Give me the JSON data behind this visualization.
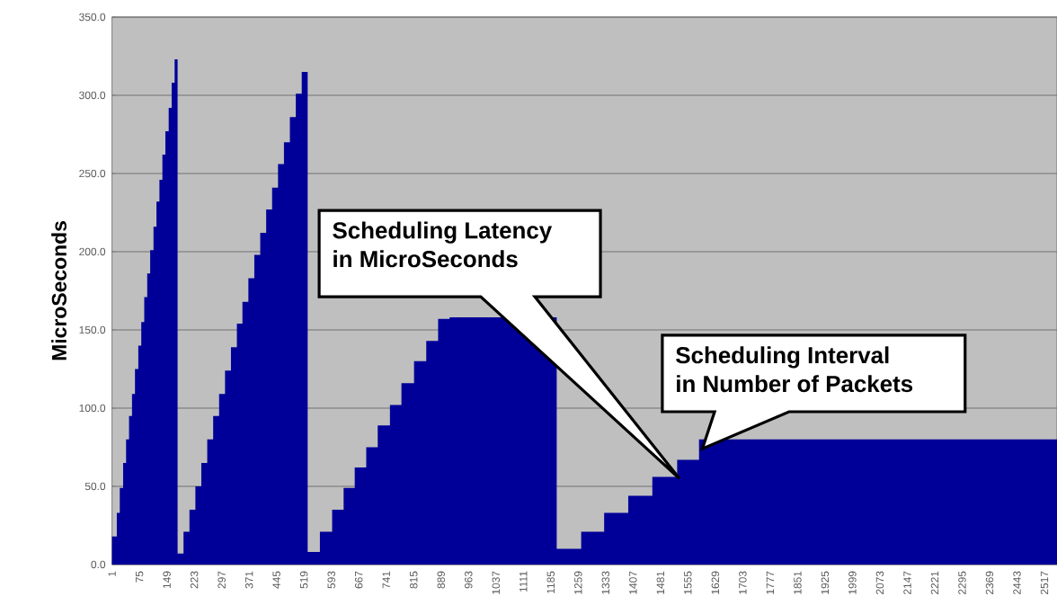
{
  "chart_data": {
    "type": "area",
    "ylabel": "MicroSeconds",
    "color": "#000099",
    "x": [
      1,
      14,
      14,
      22,
      22,
      31,
      31,
      39,
      39,
      47,
      47,
      55,
      55,
      63,
      63,
      72,
      72,
      80,
      80,
      88,
      88,
      96,
      96,
      104,
      104,
      113,
      113,
      121,
      121,
      129,
      129,
      137,
      137,
      145,
      145,
      154,
      154,
      162,
      162,
      170,
      170,
      178,
      178,
      194,
      194,
      210,
      210,
      226,
      226,
      242,
      242,
      258,
      258,
      274,
      274,
      290,
      290,
      306,
      306,
      322,
      322,
      338,
      338,
      353,
      353,
      369,
      369,
      385,
      385,
      401,
      401,
      417,
      417,
      433,
      433,
      449,
      449,
      465,
      465,
      481,
      481,
      497,
      497,
      513,
      513,
      529,
      529,
      562,
      562,
      595,
      595,
      626,
      626,
      656,
      656,
      687,
      687,
      718,
      718,
      751,
      751,
      782,
      782,
      816,
      816,
      849,
      849,
      881,
      881,
      912,
      912,
      1201,
      1201,
      1267,
      1267,
      1329,
      1329,
      1394,
      1394,
      1459,
      1459,
      1526,
      1526,
      1585,
      1585,
      2551
    ],
    "values": [
      18,
      18,
      33,
      33,
      49,
      49,
      65,
      65,
      80,
      80,
      95,
      95,
      109,
      109,
      125,
      125,
      140,
      140,
      155,
      155,
      171,
      171,
      186,
      186,
      201,
      201,
      216,
      216,
      232,
      232,
      246,
      246,
      262,
      262,
      277,
      277,
      292,
      292,
      308,
      308,
      323,
      323,
      7,
      7,
      21,
      21,
      35,
      35,
      50,
      50,
      65,
      65,
      80,
      80,
      95,
      95,
      109,
      109,
      124,
      124,
      139,
      139,
      154,
      154,
      168,
      168,
      183,
      183,
      198,
      198,
      212,
      212,
      227,
      227,
      241,
      241,
      256,
      256,
      270,
      270,
      286,
      286,
      301,
      301,
      315,
      315,
      8,
      8,
      21,
      21,
      35,
      35,
      49,
      49,
      62,
      62,
      75,
      75,
      89,
      89,
      102,
      102,
      116,
      116,
      130,
      130,
      143,
      143,
      157,
      157,
      158,
      158,
      10,
      10,
      21,
      21,
      33,
      33,
      44,
      44,
      56,
      56,
      67,
      67,
      80,
      80
    ],
    "xlim": [
      1,
      2551
    ],
    "ylim": [
      0,
      350
    ],
    "xticks": [
      1,
      75,
      149,
      223,
      297,
      371,
      445,
      519,
      593,
      667,
      741,
      815,
      889,
      963,
      1037,
      1111,
      1185,
      1259,
      1333,
      1407,
      1481,
      1555,
      1629,
      1703,
      1777,
      1851,
      1925,
      1999,
      2073,
      2147,
      2221,
      2295,
      2369,
      2443,
      2517
    ],
    "yticks": [
      {
        "value": 0,
        "label": "0.0"
      },
      {
        "value": 50,
        "label": "50.0"
      },
      {
        "value": 100,
        "label": "100.0"
      },
      {
        "value": 150,
        "label": "150.0"
      },
      {
        "value": 200,
        "label": "200.0"
      },
      {
        "value": 250,
        "label": "250.0"
      },
      {
        "value": 300,
        "label": "300.0"
      },
      {
        "value": 350,
        "label": "350.0"
      }
    ],
    "grid": "y",
    "annotations": [
      "Scheduling Latency in MicroSeconds",
      "Scheduling Interval in Number of Packets"
    ]
  }
}
